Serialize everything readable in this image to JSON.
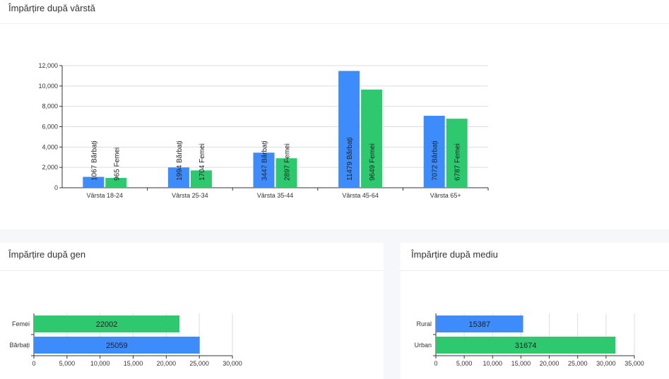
{
  "cards": {
    "age": {
      "title": "Împărțire după vârstă"
    },
    "gender": {
      "title": "Împărțire după gen"
    },
    "environment": {
      "title": "Împărțire după mediu"
    }
  },
  "colors": {
    "men": "#3e8cfb",
    "women": "#2ec86f",
    "grid": "#dddddd",
    "axis": "#333333"
  },
  "chart_data": [
    {
      "type": "bar",
      "categories": [
        "Vârsta 18-24",
        "Vârsta 25-34",
        "Vârsta 35-44",
        "Vârsta 45-64",
        "Vârsta 65+"
      ],
      "series": [
        {
          "values": [
            1067,
            1994,
            3447,
            11479,
            7072
          ],
          "labels": [
            "1067 Bărbați",
            "1994 Bărbați",
            "3447 Bărbați",
            "11479 Bărbați",
            "7072 Bărbați"
          ]
        },
        {
          "values": [
            965,
            1704,
            2897,
            9649,
            6787
          ],
          "labels": [
            "965 Femei",
            "1704 Femei",
            "2897 Femei",
            "9649 Femei",
            "6787 Femei"
          ]
        }
      ],
      "ylim": [
        0,
        12000
      ],
      "yticks": [
        "0",
        "2,000",
        "4,000",
        "6,000",
        "8,000",
        "10,000",
        "12,000"
      ],
      "grid": true
    },
    {
      "type": "bar",
      "orientation": "horizontal",
      "categories": [
        "Femei",
        "Bărbați"
      ],
      "values": [
        22002,
        25059
      ],
      "value_labels": [
        "22002",
        "25059"
      ],
      "xlim": [
        0,
        30000
      ],
      "xticks": [
        "0",
        "5,000",
        "10,000",
        "15,000",
        "20,000",
        "25,000",
        "30,000"
      ],
      "grid": true
    },
    {
      "type": "bar",
      "orientation": "horizontal",
      "categories": [
        "Rural",
        "Urban"
      ],
      "values": [
        15387,
        31674
      ],
      "value_labels": [
        "15387",
        "31674"
      ],
      "xlim": [
        0,
        35000
      ],
      "xticks": [
        "0",
        "5,000",
        "10,000",
        "15,000",
        "20,000",
        "25,000",
        "30,000",
        "35,000"
      ],
      "grid": true
    }
  ]
}
